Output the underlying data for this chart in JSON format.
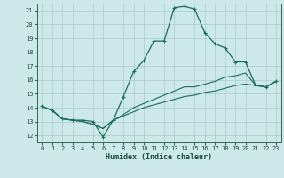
{
  "title": "",
  "xlabel": "Humidex (Indice chaleur)",
  "xlim": [
    -0.5,
    23.5
  ],
  "ylim": [
    11.5,
    21.5
  ],
  "xticks": [
    0,
    1,
    2,
    3,
    4,
    5,
    6,
    7,
    8,
    9,
    10,
    11,
    12,
    13,
    14,
    15,
    16,
    17,
    18,
    19,
    20,
    21,
    22,
    23
  ],
  "yticks": [
    12,
    13,
    14,
    15,
    16,
    17,
    18,
    19,
    20,
    21
  ],
  "background_color": "#cce8e8",
  "grid_color": "#aacccc",
  "line_color": "#1a6b5a",
  "series1_x": [
    0,
    1,
    2,
    3,
    4,
    5,
    6,
    7,
    8,
    9,
    10,
    11,
    12,
    13,
    14,
    15,
    16,
    17,
    18,
    19,
    20,
    21,
    22,
    23
  ],
  "series1_y": [
    14.1,
    13.8,
    13.2,
    13.1,
    13.1,
    13.0,
    11.9,
    13.1,
    14.8,
    16.6,
    17.4,
    18.8,
    18.8,
    21.2,
    21.3,
    21.1,
    19.4,
    18.6,
    18.3,
    17.3,
    17.3,
    15.6,
    15.5,
    15.9
  ],
  "series2_x": [
    0,
    1,
    2,
    3,
    4,
    5,
    6,
    7,
    8,
    9,
    10,
    11,
    12,
    13,
    14,
    15,
    16,
    17,
    18,
    19,
    20,
    21,
    22,
    23
  ],
  "series2_y": [
    14.1,
    13.8,
    13.2,
    13.1,
    13.0,
    12.8,
    12.5,
    13.1,
    13.5,
    14.0,
    14.3,
    14.6,
    14.9,
    15.2,
    15.5,
    15.5,
    15.7,
    15.9,
    16.2,
    16.3,
    16.5,
    15.6,
    15.5,
    15.9
  ],
  "series3_x": [
    0,
    1,
    2,
    3,
    4,
    5,
    6,
    7,
    8,
    9,
    10,
    11,
    12,
    13,
    14,
    15,
    16,
    17,
    18,
    19,
    20,
    21,
    22,
    23
  ],
  "series3_y": [
    14.1,
    13.8,
    13.2,
    13.1,
    13.0,
    12.8,
    12.5,
    13.1,
    13.4,
    13.7,
    14.0,
    14.2,
    14.4,
    14.6,
    14.8,
    14.9,
    15.1,
    15.2,
    15.4,
    15.6,
    15.7,
    15.6,
    15.5,
    15.9
  ]
}
